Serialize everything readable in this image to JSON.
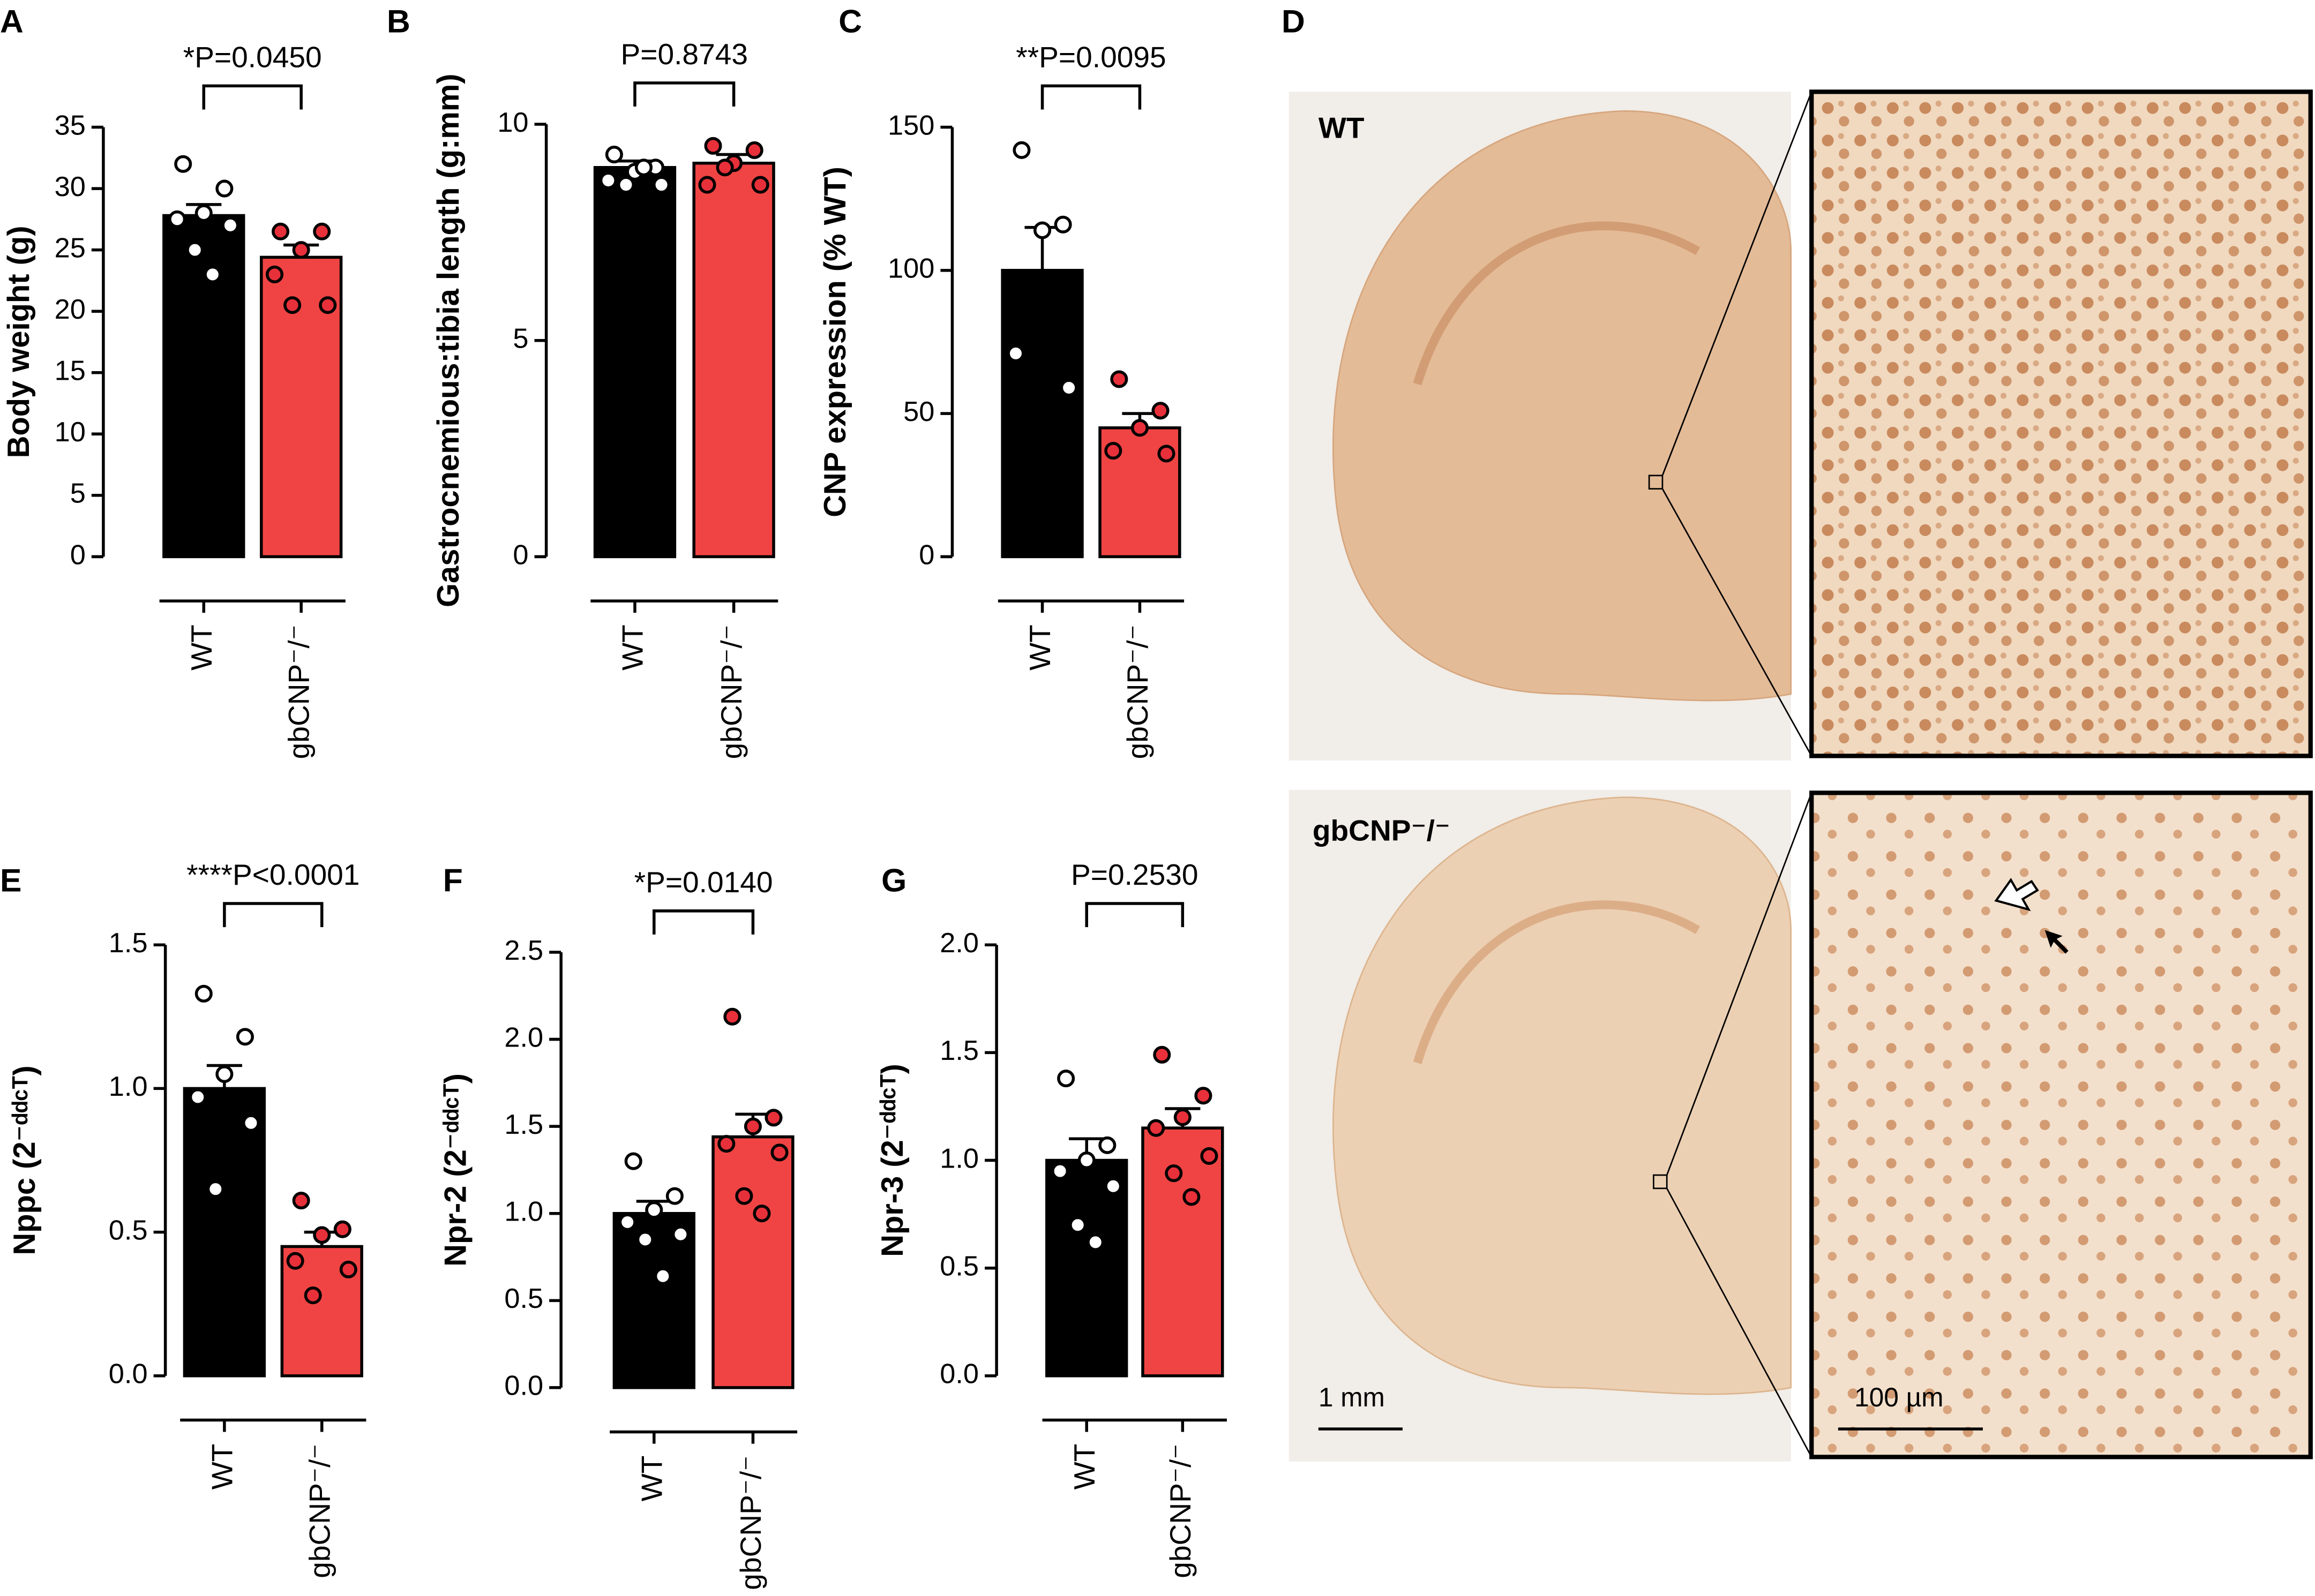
{
  "chart_data": [
    {
      "type": "bar",
      "panel": "A",
      "ylabel": "Body weight (g)",
      "annotation": "*P=0.0450",
      "categories": [
        "WT",
        "gbCNP⁻/⁻"
      ],
      "values": [
        27.8,
        24.4
      ],
      "errors": [
        0.9,
        1.0
      ],
      "colors": [
        "#000000",
        "#f04444"
      ],
      "point_colors": [
        "#ffffff",
        "#e8303a"
      ],
      "points": [
        [
          32,
          30,
          28,
          27.5,
          27,
          25,
          23
        ],
        [
          26.5,
          26.5,
          25,
          23,
          20.5,
          20.5
        ]
      ],
      "ylim": [
        0,
        35
      ],
      "yticks": [
        0,
        5,
        10,
        15,
        20,
        25,
        30,
        35
      ]
    },
    {
      "type": "bar",
      "panel": "B",
      "ylabel": "Gastrocnemious:tibia length (g:mm)",
      "annotation": "P=0.8743",
      "categories": [
        "WT",
        "gbCNP⁻/⁻"
      ],
      "values": [
        9.0,
        9.1
      ],
      "errors": [
        0.15,
        0.2
      ],
      "colors": [
        "#000000",
        "#f04444"
      ],
      "point_colors": [
        "#ffffff",
        "#e8303a"
      ],
      "points": [
        [
          9.3,
          9.0,
          8.9,
          8.7,
          8.6,
          8.6,
          9.0
        ],
        [
          9.5,
          9.4,
          9.1,
          8.6,
          8.6,
          9.0
        ]
      ],
      "ylim": [
        0,
        10
      ],
      "yticks": [
        0,
        5,
        10
      ]
    },
    {
      "type": "bar",
      "panel": "C",
      "ylabel": "CNP expression (% WT)",
      "annotation": "**P=0.0095",
      "categories": [
        "WT",
        "gbCNP⁻/⁻"
      ],
      "values": [
        100,
        45
      ],
      "errors": [
        15,
        5
      ],
      "colors": [
        "#000000",
        "#f04444"
      ],
      "point_colors": [
        "#ffffff",
        "#e8303a"
      ],
      "points": [
        [
          142,
          116,
          114,
          71,
          59
        ],
        [
          62,
          51,
          45,
          37,
          36
        ]
      ],
      "ylim": [
        0,
        150
      ],
      "yticks": [
        0,
        50,
        100,
        150
      ]
    },
    {
      "type": "bar",
      "panel": "E",
      "ylabel": "Nppc (2⁻ᵈᵈᶜᵀ)",
      "annotation": "****P<0.0001",
      "categories": [
        "WT",
        "gbCNP⁻/⁻"
      ],
      "values": [
        1.0,
        0.45
      ],
      "errors": [
        0.08,
        0.05
      ],
      "colors": [
        "#000000",
        "#f04444"
      ],
      "point_colors": [
        "#ffffff",
        "#e8303a"
      ],
      "points": [
        [
          1.33,
          1.18,
          1.05,
          0.97,
          0.88,
          0.65
        ],
        [
          0.61,
          0.51,
          0.49,
          0.4,
          0.37,
          0.28
        ]
      ],
      "ylim": [
        0,
        1.5
      ],
      "yticks": [
        {
          "value": 0,
          "label": "0.0"
        },
        0.5,
        {
          "value": 1,
          "label": "1.0"
        },
        1.5
      ]
    },
    {
      "type": "bar",
      "panel": "F",
      "ylabel": "Npr-2 (2⁻ᵈᵈᶜᵀ)",
      "annotation": "*P=0.0140",
      "categories": [
        "WT",
        "gbCNP⁻/⁻"
      ],
      "values": [
        1.0,
        1.44
      ],
      "errors": [
        0.07,
        0.13
      ],
      "colors": [
        "#000000",
        "#f04444"
      ],
      "point_colors": [
        "#ffffff",
        "#e8303a"
      ],
      "points": [
        [
          1.3,
          1.1,
          1.02,
          0.95,
          0.88,
          0.85,
          0.64
        ],
        [
          2.13,
          1.55,
          1.5,
          1.4,
          1.35,
          1.1,
          1.0
        ]
      ],
      "ylim": [
        0,
        2.5
      ],
      "yticks": [
        {
          "value": 0,
          "label": "0.0"
        },
        0.5,
        {
          "value": 1,
          "label": "1.0"
        },
        1.5,
        {
          "value": 2,
          "label": "2.0"
        },
        2.5
      ]
    },
    {
      "type": "bar",
      "panel": "G",
      "ylabel": "Npr-3 (2⁻ᵈᵈᶜᵀ)",
      "annotation": "P=0.2530",
      "categories": [
        "WT",
        "gbCNP⁻/⁻"
      ],
      "values": [
        1.0,
        1.15
      ],
      "errors": [
        0.1,
        0.09
      ],
      "colors": [
        "#000000",
        "#f04444"
      ],
      "point_colors": [
        "#ffffff",
        "#e8303a"
      ],
      "points": [
        [
          1.38,
          1.07,
          1.0,
          0.95,
          0.88,
          0.7,
          0.62
        ],
        [
          1.49,
          1.3,
          1.2,
          1.15,
          1.02,
          0.94,
          0.83
        ]
      ],
      "ylim": [
        0,
        2
      ],
      "yticks": [
        {
          "value": 0,
          "label": "0.0"
        },
        0.5,
        {
          "value": 1,
          "label": "1.0"
        },
        1.5,
        {
          "value": 2,
          "label": "2.0"
        }
      ]
    }
  ],
  "panel_d": {
    "panel": "D",
    "top_label": "WT",
    "bottom_label": "gbCNP⁻/⁻",
    "scale_left": "1 mm",
    "scale_right": "100 µm"
  }
}
